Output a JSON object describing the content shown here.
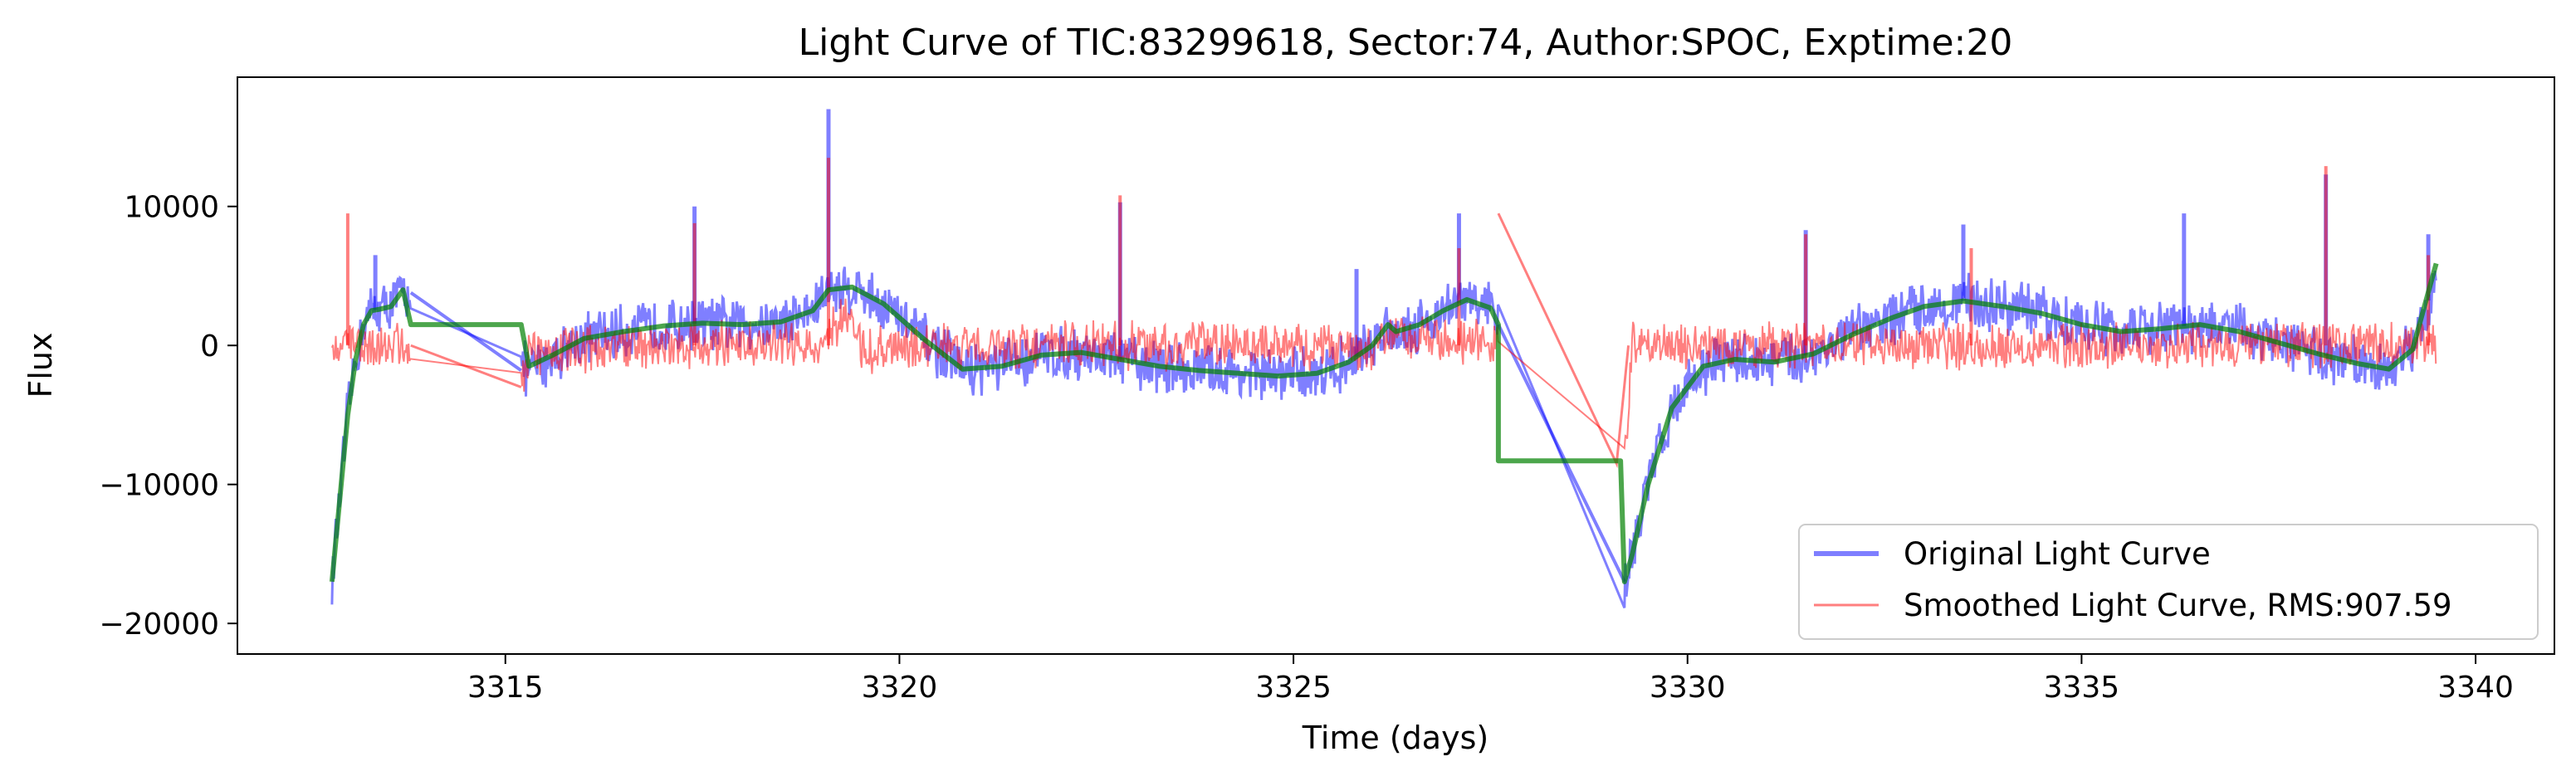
{
  "chart_data": {
    "type": "line",
    "title": "Light Curve of TIC:83299618, Sector:74, Author:SPOC, Exptime:20",
    "xlabel": "Time (days)",
    "ylabel": "Flux",
    "xlim": [
      3311.6,
      3341.0
    ],
    "ylim": [
      -22200,
      19300
    ],
    "xticks": [
      3315,
      3320,
      3325,
      3330,
      3335,
      3340
    ],
    "yticks": [
      -20000,
      -10000,
      0,
      10000
    ],
    "grid": false,
    "legend_position": "lower-right",
    "series": [
      {
        "name": "Original Light Curve",
        "color": "#0000ff",
        "noise_amplitude": 2200,
        "x": [
          3312.8,
          3312.9,
          3313.0,
          3313.1,
          3313.2,
          3313.3,
          3313.4,
          3313.55,
          3313.7,
          3313.8,
          3315.2,
          3315.3,
          3315.6,
          3316.0,
          3316.5,
          3317.0,
          3317.5,
          3318.0,
          3318.5,
          3318.9,
          3319.1,
          3319.4,
          3319.8,
          3320.3,
          3320.8,
          3321.3,
          3321.8,
          3322.3,
          3322.8,
          3323.3,
          3323.8,
          3324.3,
          3324.8,
          3325.3,
          3325.7,
          3326.0,
          3326.2,
          3326.3,
          3326.6,
          3326.9,
          3327.2,
          3327.5,
          3327.6,
          3329.2,
          3329.3,
          3329.5,
          3329.8,
          3330.2,
          3330.6,
          3331.1,
          3331.6,
          3332.1,
          3332.6,
          3333.0,
          3333.5,
          3334.0,
          3334.5,
          3335.0,
          3335.5,
          3336.0,
          3336.5,
          3337.0,
          3337.5,
          3338.0,
          3338.5,
          3338.9,
          3339.2,
          3339.5
        ],
        "y": [
          -17000,
          -11000,
          -5000,
          -1000,
          1500,
          2500,
          2600,
          2800,
          4000,
          3800,
          -1500,
          -2000,
          -700,
          500,
          1000,
          1400,
          1600,
          1500,
          1700,
          2500,
          4000,
          4200,
          3000,
          500,
          -1700,
          -1500,
          -700,
          -500,
          -1000,
          -1500,
          -1800,
          -2000,
          -2200,
          -2000,
          -1200,
          0,
          1500,
          1000,
          1500,
          2500,
          3300,
          2700,
          1500,
          -17000,
          -15000,
          -10000,
          -4500,
          -1500,
          -1000,
          -1200,
          -600,
          800,
          2000,
          2800,
          3200,
          2800,
          2300,
          1500,
          1000,
          1200,
          1500,
          1000,
          200,
          -600,
          -1300,
          -1700,
          -300,
          5000
        ]
      },
      {
        "name": "Smoothed Light Curve, RMS:907.59",
        "color": "#ff0000",
        "noise_amplitude": 1900,
        "x": [
          3312.8,
          3313.0,
          3313.3,
          3313.6,
          3313.8,
          3315.2,
          3315.3,
          3316.5,
          3318.0,
          3318.9,
          3319.3,
          3319.6,
          3320.5,
          3322.0,
          3323.5,
          3325.0,
          3326.0,
          3326.3,
          3327.0,
          3327.6,
          3327.7,
          3329.1,
          3329.2,
          3329.3,
          3330.5,
          3332.0,
          3333.0,
          3333.1,
          3334.5,
          3336.0,
          3337.5,
          3338.5,
          3339.5
        ],
        "y": [
          0,
          0,
          0,
          0,
          0,
          -3000,
          -500,
          0,
          0,
          0,
          2000,
          -500,
          0,
          0,
          0,
          0,
          0,
          500,
          500,
          0,
          9500,
          -8500,
          -8500,
          0,
          0,
          0,
          0,
          0,
          0,
          0,
          0,
          0,
          0
        ]
      },
      {
        "name": "",
        "color": "#008000",
        "noise_amplitude": 0,
        "x": [
          3312.8,
          3312.9,
          3313.0,
          3313.1,
          3313.2,
          3313.3,
          3313.4,
          3313.55,
          3313.7,
          3313.8,
          3315.2,
          3315.3,
          3315.6,
          3316.0,
          3316.5,
          3317.0,
          3317.5,
          3318.0,
          3318.5,
          3318.9,
          3319.1,
          3319.4,
          3319.8,
          3320.3,
          3320.8,
          3321.3,
          3321.8,
          3322.3,
          3322.8,
          3323.3,
          3323.8,
          3324.3,
          3324.8,
          3325.3,
          3325.7,
          3326.0,
          3326.2,
          3326.3,
          3326.6,
          3326.9,
          3327.2,
          3327.5,
          3327.6,
          3327.6,
          3329.15,
          3329.2,
          3329.3,
          3329.5,
          3329.8,
          3330.2,
          3330.6,
          3331.1,
          3331.6,
          3332.1,
          3332.6,
          3333.0,
          3333.5,
          3334.0,
          3334.5,
          3335.0,
          3335.5,
          3336.0,
          3336.5,
          3337.0,
          3337.5,
          3338.0,
          3338.5,
          3338.9,
          3339.2,
          3339.5
        ],
        "y": [
          -17000,
          -11000,
          -5000,
          -1000,
          1500,
          2500,
          2600,
          2800,
          4000,
          1500,
          1500,
          -1500,
          -700,
          500,
          1000,
          1400,
          1600,
          1500,
          1700,
          2500,
          4000,
          4200,
          3000,
          500,
          -1700,
          -1500,
          -700,
          -500,
          -1000,
          -1500,
          -1800,
          -2000,
          -2200,
          -2000,
          -1200,
          0,
          1500,
          1000,
          1500,
          2500,
          3300,
          2700,
          1500,
          -8300,
          -8300,
          -17000,
          -15000,
          -10000,
          -4500,
          -1500,
          -1000,
          -1200,
          -600,
          800,
          2000,
          2800,
          3200,
          2800,
          2300,
          1500,
          1000,
          1200,
          1500,
          1000,
          200,
          -600,
          -1300,
          -1700,
          -300,
          5900
        ]
      }
    ],
    "spikes": {
      "blue": [
        [
          3313.35,
          6500
        ],
        [
          3317.4,
          10000
        ],
        [
          3319.1,
          17000
        ],
        [
          3322.8,
          10300
        ],
        [
          3325.8,
          5500
        ],
        [
          3327.1,
          9500
        ],
        [
          3331.5,
          8300
        ],
        [
          3333.5,
          8700
        ],
        [
          3336.3,
          9500
        ],
        [
          3338.1,
          12300
        ],
        [
          3339.4,
          8000
        ]
      ],
      "red": [
        [
          3313.0,
          9500
        ],
        [
          3317.4,
          8800
        ],
        [
          3319.1,
          13500
        ],
        [
          3322.8,
          10800
        ],
        [
          3327.1,
          7000
        ],
        [
          3331.5,
          8000
        ],
        [
          3333.6,
          7000
        ],
        [
          3338.1,
          12900
        ],
        [
          3339.4,
          6500
        ]
      ]
    }
  },
  "legend": {
    "items": [
      {
        "label": "Original Light Curve",
        "color": "#0000ff"
      },
      {
        "label": "Smoothed Light Curve, RMS:907.59",
        "color": "#ff0000"
      }
    ]
  }
}
